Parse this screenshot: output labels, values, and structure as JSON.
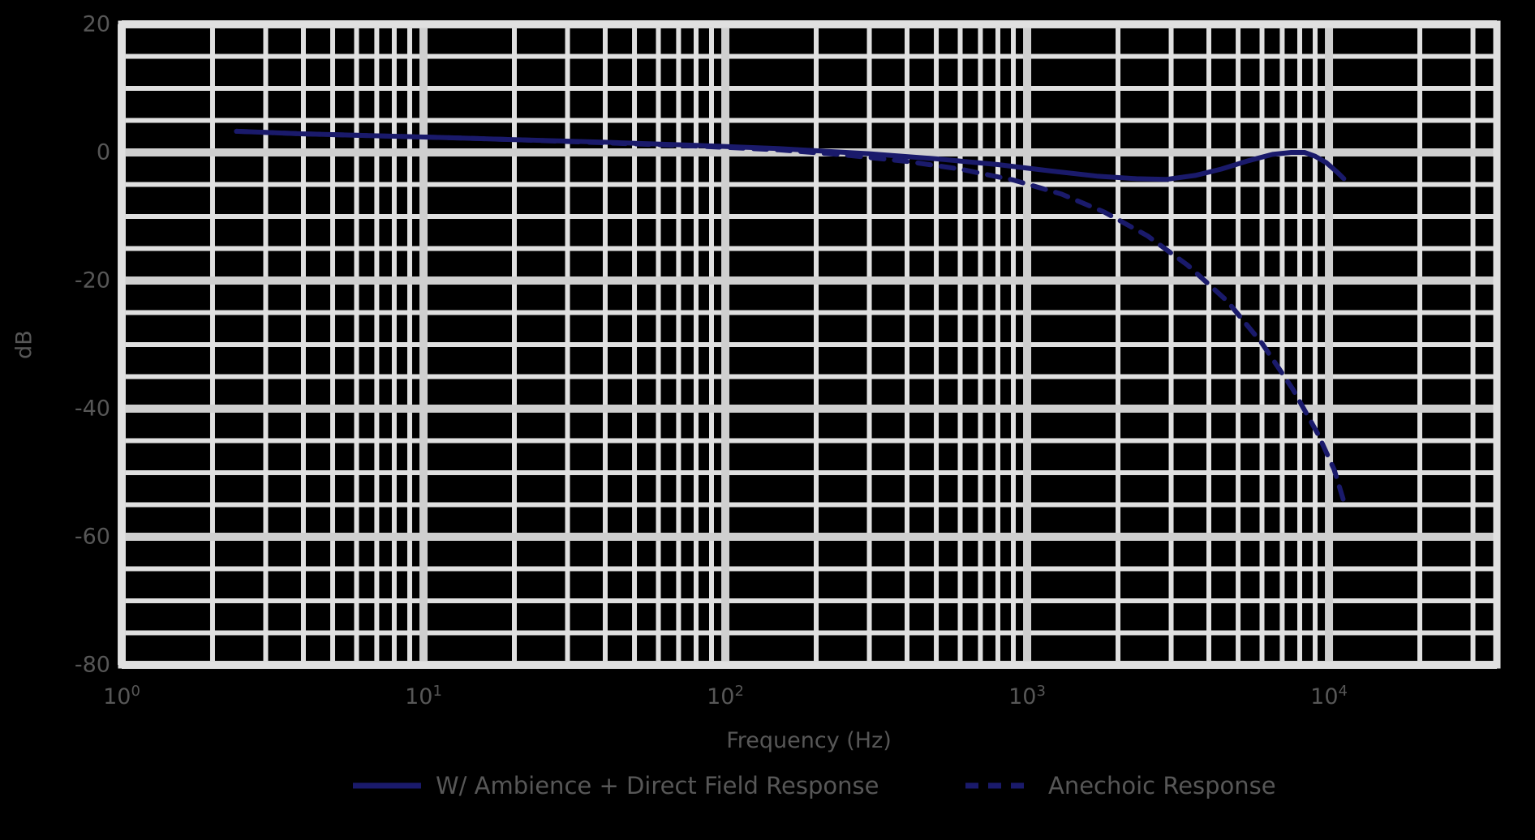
{
  "figure": {
    "background_color": "#000000",
    "grid_color": "#e0e0e0",
    "grid_major_color": "#cfcfcf",
    "text_color": "#575757",
    "curve_color": "#1a1a6b"
  },
  "chart_data": {
    "type": "line",
    "xlabel": "Frequency (Hz)",
    "ylabel": "dB",
    "x_scale": "log",
    "xlim": [
      1,
      36000
    ],
    "ylim": [
      -80,
      20
    ],
    "grid": "on",
    "y_minor_step_db": 5,
    "y_major_step_db": 20,
    "legend_position": "bottom",
    "yticks": [
      "20",
      "0",
      "-20",
      "-40",
      "-60",
      "-80"
    ],
    "ytick_values": [
      20,
      0,
      -20,
      -40,
      -60,
      -80
    ],
    "xticks": [
      {
        "value": 1,
        "base": "10",
        "exp": "0"
      },
      {
        "value": 10,
        "base": "10",
        "exp": "1"
      },
      {
        "value": 100,
        "base": "10",
        "exp": "2"
      },
      {
        "value": 1000,
        "base": "10",
        "exp": "3"
      },
      {
        "value": 10000,
        "base": "10",
        "exp": "4"
      }
    ],
    "series": [
      {
        "name": "W/ Ambience + Direct Field Response",
        "style": "solid",
        "color": "#1a1a6b",
        "points": [
          [
            2.4,
            3.3
          ],
          [
            4,
            2.9
          ],
          [
            7,
            2.6
          ],
          [
            12,
            2.3
          ],
          [
            20,
            2.0
          ],
          [
            40,
            1.6
          ],
          [
            80,
            1.1
          ],
          [
            150,
            0.6
          ],
          [
            300,
            -0.2
          ],
          [
            500,
            -1.0
          ],
          [
            800,
            -1.9
          ],
          [
            1200,
            -2.9
          ],
          [
            1700,
            -3.7
          ],
          [
            2300,
            -4.1
          ],
          [
            2900,
            -4.2
          ],
          [
            3600,
            -3.6
          ],
          [
            4400,
            -2.6
          ],
          [
            5400,
            -1.3
          ],
          [
            6500,
            -0.3
          ],
          [
            7500,
            0.0
          ],
          [
            8300,
            0.0
          ],
          [
            9000,
            -0.6
          ],
          [
            9800,
            -1.6
          ],
          [
            10600,
            -3.0
          ],
          [
            11200,
            -4.1
          ]
        ]
      },
      {
        "name": "Anechoic Response",
        "style": "dashed",
        "color": "#1a1a6b",
        "points": [
          [
            2.4,
            3.3
          ],
          [
            4,
            2.9
          ],
          [
            7,
            2.6
          ],
          [
            12,
            2.3
          ],
          [
            20,
            2.0
          ],
          [
            40,
            1.5
          ],
          [
            80,
            1.0
          ],
          [
            150,
            0.4
          ],
          [
            250,
            -0.4
          ],
          [
            400,
            -1.4
          ],
          [
            600,
            -2.6
          ],
          [
            900,
            -4.3
          ],
          [
            1300,
            -6.5
          ],
          [
            1800,
            -9.3
          ],
          [
            2500,
            -13.0
          ],
          [
            3400,
            -17.6
          ],
          [
            4600,
            -23.2
          ],
          [
            6000,
            -29.8
          ],
          [
            7600,
            -37.0
          ],
          [
            9200,
            -44.0
          ],
          [
            10400,
            -49.5
          ],
          [
            11200,
            -54.5
          ]
        ]
      }
    ]
  }
}
